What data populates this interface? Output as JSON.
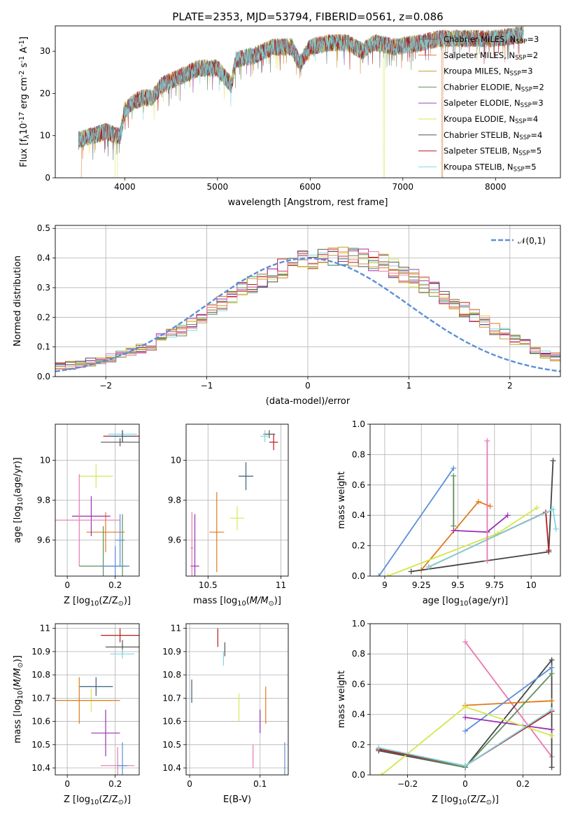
{
  "figure": {
    "title": "PLATE=2353, MJD=53794, FIBERID=0561, z=0.086",
    "ssp_labels": [
      "Chabrier MILES, N$_{SSP}$=3",
      "Salpeter MILES, N$_{SSP}$=2",
      "Kroupa MILES, N$_{SSP}$=3",
      "Chabrier ELODIE, N$_{SSP}$=2",
      "Salpeter ELODIE, N$_{SSP}$=3",
      "Kroupa ELODIE, N$_{SSP}$=4",
      "Chabrier STELIB, N$_{SSP}$=4",
      "Salpeter STELIB, N$_{SSP}$=5",
      "Kroupa STELIB, N$_{SSP}$=5"
    ],
    "ssp_colors": [
      "#5b6f7a",
      "#e07a3a",
      "#c79a3a",
      "#5f8f5f",
      "#9a4fb0",
      "#d9e65a",
      "#555555",
      "#b81c1c",
      "#7fd6e0"
    ]
  },
  "chart_data": [
    {
      "type": "line",
      "xlabel": "wavelength [Angstrom, rest frame]",
      "ylabel": "Flux [f$_\\lambda$10$^{-17}$ erg cm$^{-2}$ s$^{-1}$ A$^{-1}$]",
      "xlim": [
        3250,
        8700
      ],
      "ylim": [
        0,
        36
      ],
      "xticks": [
        4000,
        5000,
        6000,
        7000,
        8000
      ],
      "yticks": [
        0,
        10,
        20,
        30
      ],
      "legend": "right",
      "spectrum_envelope": {
        "wavelength": [
          3500,
          3800,
          3900,
          3950,
          4000,
          4100,
          4200,
          4300,
          4400,
          4600,
          4800,
          5000,
          5150,
          5200,
          5400,
          5600,
          5800,
          5890,
          6000,
          6200,
          6400,
          6560,
          6700,
          6900,
          7200,
          7400,
          7600,
          8000,
          8300
        ],
        "flux": [
          9,
          11,
          10,
          10,
          16,
          18,
          19,
          19,
          22,
          24,
          26,
          26,
          22,
          28,
          29,
          31,
          31,
          27,
          31,
          32,
          32,
          30,
          32,
          31,
          32,
          33,
          33,
          33,
          34
        ]
      },
      "gaps": [
        {
          "series": "Salpeter MILES, N$_{SSP}$=2",
          "from": 3500,
          "to": 3530
        },
        {
          "series": "Kroupa ELODIE, N$_{SSP}$=4",
          "from": 3895,
          "to": 3920
        },
        {
          "series": "Kroupa ELODIE, N$_{SSP}$=4",
          "from": 6790,
          "to": 6800
        },
        {
          "series": "Salpeter MILES, N$_{SSP}$=2",
          "from": 7420,
          "to": 7430
        }
      ]
    },
    {
      "type": "bar",
      "xlabel": "(data-model)/error",
      "ylabel": "Normed distribution",
      "xlim": [
        -2.5,
        2.5
      ],
      "ylim": [
        0,
        0.51
      ],
      "xticks": [
        -2,
        -1,
        0,
        1,
        2
      ],
      "yticks": [
        0.0,
        0.1,
        0.2,
        0.3,
        0.4,
        0.5
      ],
      "grid": true,
      "legend": "top-right",
      "reference_curve": {
        "name": "$\\mathcal{N}(0,1)$",
        "color": "#5b8fd9"
      },
      "bin_width": 0.1,
      "bin_start": -2.5,
      "histogram_mean": [
        0.035,
        0.038,
        0.043,
        0.05,
        0.057,
        0.065,
        0.073,
        0.083,
        0.094,
        0.108,
        0.125,
        0.14,
        0.158,
        0.178,
        0.2,
        0.222,
        0.245,
        0.268,
        0.29,
        0.31,
        0.33,
        0.348,
        0.363,
        0.378,
        0.39,
        0.398,
        0.404,
        0.407,
        0.408,
        0.405,
        0.4,
        0.392,
        0.38,
        0.366,
        0.35,
        0.333,
        0.314,
        0.293,
        0.272,
        0.25,
        0.228,
        0.206,
        0.184,
        0.163,
        0.143,
        0.125,
        0.108,
        0.092,
        0.078,
        0.065
      ]
    },
    {
      "type": "scatter",
      "xlabel": "Z [log$_{10}$(Z/Z$_\\odot$)]",
      "ylabel": "age  [log$_{10}$($age/yr$)]",
      "xlim": [
        -0.05,
        0.3
      ],
      "ylim": [
        9.42,
        10.18
      ],
      "xticks": [
        0.0,
        0.2
      ],
      "yticks": [
        9.6,
        9.8,
        10.0
      ],
      "grid": true,
      "points": [
        {
          "x": 0.23,
          "y": 10.12,
          "xerr": 0.08,
          "yerr": 0.03
        },
        {
          "x": 0.22,
          "y": 10.09,
          "xerr": 0.08,
          "yerr": 0.02
        },
        {
          "x": 0.23,
          "y": 10.13,
          "xerr": 0.06,
          "yerr": 0.02
        },
        {
          "x": 0.23,
          "y": 10.12,
          "xerr": 0.05,
          "yerr": 0.03
        },
        {
          "x": 0.12,
          "y": 9.92,
          "xerr": 0.07,
          "yerr": 0.06
        },
        {
          "x": 0.16,
          "y": 9.64,
          "xerr": 0.08,
          "yerr": 0.1
        },
        {
          "x": 0.1,
          "y": 9.72,
          "xerr": 0.08,
          "yerr": 0.1
        },
        {
          "x": 0.05,
          "y": 9.7,
          "xerr": 0.17,
          "yerr": 0.23
        },
        {
          "x": 0.22,
          "y": 9.6,
          "xerr": 0.02,
          "yerr": 0.13
        },
        {
          "x": 0.23,
          "y": 9.47,
          "xerr": 0.02,
          "yerr": 0.26
        },
        {
          "x": 0.15,
          "y": 9.47,
          "xerr": 0.1,
          "yerr": 0.2
        },
        {
          "x": 0.2,
          "y": 9.47,
          "xerr": 0.06,
          "yerr": 0.1
        }
      ]
    },
    {
      "type": "scatter",
      "xlabel": "mass [log$_{10}$($M/M_\\odot$)]",
      "ylabel": "",
      "xlim": [
        10.35,
        11.05
      ],
      "ylim": [
        9.42,
        10.18
      ],
      "xticks": [
        10.5,
        11.0
      ],
      "yticks": [
        9.6,
        9.8,
        10.0
      ],
      "grid": true,
      "points": [
        {
          "x": 10.95,
          "y": 10.09,
          "xerr": 0.03,
          "yerr": 0.04
        },
        {
          "x": 10.92,
          "y": 10.13,
          "xerr": 0.04,
          "yerr": 0.02
        },
        {
          "x": 10.89,
          "y": 10.12,
          "xerr": 0.03,
          "yerr": 0.03
        },
        {
          "x": 10.76,
          "y": 9.92,
          "xerr": 0.05,
          "yerr": 0.07
        },
        {
          "x": 10.7,
          "y": 9.71,
          "xerr": 0.05,
          "yerr": 0.06
        },
        {
          "x": 10.56,
          "y": 9.64,
          "xerr": 0.05,
          "yerr": 0.2
        },
        {
          "x": 10.41,
          "y": 9.47,
          "xerr": 0.03,
          "yerr": 0.26
        },
        {
          "x": 10.39,
          "y": 9.56,
          "xerr": 0.01,
          "yerr": 0.18
        }
      ]
    },
    {
      "type": "line",
      "xlabel": "age  [log$_{10}$($age/yr$)]",
      "ylabel": "mass weight",
      "xlim": [
        8.9,
        10.2
      ],
      "ylim": [
        0,
        1
      ],
      "xticks": [
        9.0,
        9.25,
        9.5,
        9.75,
        10.0
      ],
      "yticks": [
        0.0,
        0.2,
        0.4,
        0.6,
        0.8,
        1.0
      ],
      "grid": true,
      "series": [
        {
          "name": "Chabrier MILES, N$_{SSP}$=3",
          "color": "#5b8fd9",
          "x": [
            8.96,
            9.47
          ],
          "y": [
            0.0,
            0.71
          ]
        },
        {
          "name": "Salpeter MILES, N$_{SSP}$=2",
          "color": "#e07a1a",
          "x": [
            9.25,
            9.64,
            9.72
          ],
          "y": [
            0.04,
            0.49,
            0.46
          ]
        },
        {
          "name": "Chabrier ELODIE, N$_{SSP}$=2",
          "color": "#5f8f5f",
          "x": [
            9.47,
            9.47
          ],
          "y": [
            0.33,
            0.66
          ]
        },
        {
          "name": "Salpeter ELODIE, N$_{SSP}$=3",
          "color": "#9a2fb0",
          "x": [
            9.47,
            9.7,
            9.84
          ],
          "y": [
            0.3,
            0.29,
            0.4
          ]
        },
        {
          "name": "Kroupa ELODIE, N$_{SSP}$=4",
          "color": "#d4e64a",
          "x": [
            9.02,
            9.77,
            10.04
          ],
          "y": [
            0.0,
            0.28,
            0.45
          ]
        },
        {
          "name": "Chabrier STELIB, N$_{SSP}$=4",
          "color": "#444444",
          "x": [
            9.18,
            10.12,
            10.15
          ],
          "y": [
            0.03,
            0.16,
            0.76
          ]
        },
        {
          "name": "Salpeter STELIB, N$_{SSP}$=5",
          "color": "#b81c1c",
          "x": [
            9.3,
            10.1,
            10.12
          ],
          "y": [
            0.06,
            0.42,
            0.17
          ]
        },
        {
          "name": "Kroupa STELIB, N$_{SSP}$=5",
          "color": "#7fd6e0",
          "x": [
            9.3,
            10.15,
            10.17
          ],
          "y": [
            0.06,
            0.44,
            0.31
          ]
        },
        {
          "name": "Kroupa MILES, N$_{SSP}$=3",
          "color": "#e879b0",
          "x": [
            9.7,
            9.7
          ],
          "y": [
            0.1,
            0.89
          ]
        }
      ]
    },
    {
      "type": "scatter",
      "xlabel": "Z [log$_{10}$(Z/Z$_\\odot$)]",
      "ylabel": "mass [log$_{10}$($M/M_\\odot$)]",
      "xlim": [
        -0.05,
        0.3
      ],
      "ylim": [
        10.37,
        11.02
      ],
      "xticks": [
        0.0,
        0.2
      ],
      "yticks": [
        10.4,
        10.5,
        10.6,
        10.7,
        10.8,
        10.9,
        11.0
      ],
      "grid": true,
      "points": [
        {
          "x": 0.22,
          "y": 10.97,
          "xerr": 0.08,
          "yerr": 0.03
        },
        {
          "x": 0.23,
          "y": 10.92,
          "xerr": 0.07,
          "yerr": 0.03
        },
        {
          "x": 0.23,
          "y": 10.89,
          "xerr": 0.05,
          "yerr": 0.02
        },
        {
          "x": 0.12,
          "y": 10.75,
          "xerr": 0.07,
          "yerr": 0.04
        },
        {
          "x": 0.1,
          "y": 10.69,
          "xerr": 0.08,
          "yerr": 0.05
        },
        {
          "x": 0.05,
          "y": 10.69,
          "xerr": 0.17,
          "yerr": 0.1
        },
        {
          "x": 0.16,
          "y": 10.55,
          "xerr": 0.06,
          "yerr": 0.1
        },
        {
          "x": 0.21,
          "y": 10.41,
          "xerr": 0.07,
          "yerr": 0.08
        },
        {
          "x": 0.23,
          "y": 10.41,
          "xerr": 0.02,
          "yerr": 0.1
        }
      ]
    },
    {
      "type": "scatter",
      "xlabel": "E(B-V)",
      "ylabel": "",
      "xlim": [
        -0.005,
        0.14
      ],
      "ylim": [
        10.37,
        11.02
      ],
      "xticks": [
        0.0,
        0.1
      ],
      "yticks": [
        10.4,
        10.5,
        10.6,
        10.7,
        10.8,
        10.9,
        11.0
      ],
      "grid": true,
      "points": [
        {
          "x": 0.04,
          "y": 10.96,
          "yerr": 0.04
        },
        {
          "x": 0.05,
          "y": 10.91,
          "yerr": 0.03
        },
        {
          "x": 0.048,
          "y": 10.87,
          "yerr": 0.03
        },
        {
          "x": 0.003,
          "y": 10.73,
          "yerr": 0.05
        },
        {
          "x": 0.07,
          "y": 10.66,
          "yerr": 0.06
        },
        {
          "x": 0.108,
          "y": 10.67,
          "yerr": 0.08
        },
        {
          "x": 0.1,
          "y": 10.6,
          "yerr": 0.05
        },
        {
          "x": 0.09,
          "y": 10.45,
          "yerr": 0.05
        },
        {
          "x": 0.135,
          "y": 10.43,
          "yerr": 0.08
        }
      ]
    },
    {
      "type": "line",
      "xlabel": "Z [log$_{10}$(Z/Z$_\\odot$)]",
      "ylabel": "mass weight",
      "xlim": [
        -0.33,
        0.33
      ],
      "ylim": [
        0,
        1
      ],
      "xticks": [
        -0.2,
        0.0,
        0.2
      ],
      "yticks": [
        0.0,
        0.2,
        0.4,
        0.6,
        0.8,
        1.0
      ],
      "grid": true,
      "series": [
        {
          "name": "Kroupa MILES, N$_{SSP}$=3",
          "color": "#e879b0",
          "x": [
            0.0,
            0.3
          ],
          "y": [
            0.88,
            0.12
          ]
        },
        {
          "name": "Chabrier STELIB, N$_{SSP}$=4",
          "color": "#444444",
          "x": [
            -0.3,
            0.0,
            0.3,
            0.3
          ],
          "y": [
            0.16,
            0.05,
            0.76,
            0.05
          ]
        },
        {
          "name": "Salpeter MILES, N$_{SSP}$=2",
          "color": "#e07a1a",
          "x": [
            0.0,
            0.3
          ],
          "y": [
            0.46,
            0.49
          ]
        },
        {
          "name": "Chabrier ELODIE, N$_{SSP}$=2",
          "color": "#5f8f5f",
          "x": [
            -0.3,
            0.0,
            0.3
          ],
          "y": [
            0.17,
            0.05,
            0.67
          ]
        },
        {
          "name": "Chabrier MILES, N$_{SSP}$=3",
          "color": "#5b8fd9",
          "x": [
            0.0,
            0.3
          ],
          "y": [
            0.29,
            0.71
          ]
        },
        {
          "name": "Salpeter ELODIE, N$_{SSP}$=3",
          "color": "#9a2fb0",
          "x": [
            0.0,
            0.3
          ],
          "y": [
            0.38,
            0.3
          ]
        },
        {
          "name": "Kroupa ELODIE, N$_{SSP}$=4",
          "color": "#d4e64a",
          "x": [
            -0.29,
            0.0,
            0.3
          ],
          "y": [
            0.0,
            0.45,
            0.26
          ]
        },
        {
          "name": "Salpeter STELIB, N$_{SSP}$=5",
          "color": "#b81c1c",
          "x": [
            -0.3,
            0.0,
            0.3
          ],
          "y": [
            0.17,
            0.06,
            0.42
          ]
        },
        {
          "name": "Kroupa STELIB, N$_{SSP}$=5",
          "color": "#7fd6e0",
          "x": [
            -0.3,
            0.0,
            0.3
          ],
          "y": [
            0.18,
            0.06,
            0.43
          ]
        }
      ]
    }
  ]
}
